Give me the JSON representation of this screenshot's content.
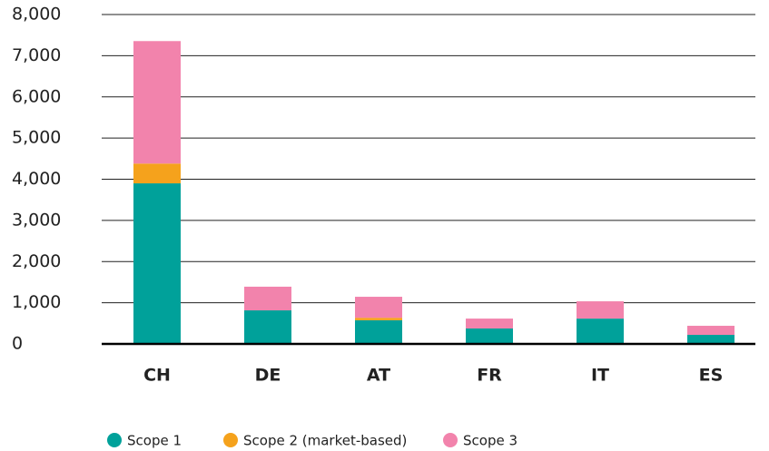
{
  "chart_data": {
    "type": "stacked_bar",
    "categories": [
      "CH",
      "DE",
      "AT",
      "FR",
      "IT",
      "ES"
    ],
    "series": [
      {
        "name": "Scope 1",
        "color": "#00a19a",
        "values": [
          3900,
          815,
          575,
          375,
          615,
          220
        ]
      },
      {
        "name": "Scope 2 (market-based)",
        "color": "#f5a21c",
        "values": [
          480,
          0,
          60,
          0,
          0,
          0
        ]
      },
      {
        "name": "Scope 3",
        "color": "#f283ac",
        "values": [
          2975,
          575,
          510,
          240,
          420,
          220
        ]
      }
    ],
    "ylim": [
      0,
      8000
    ],
    "yticks": [
      0,
      {
        "value": 1000,
        "label": "1,000"
      },
      {
        "value": 2000,
        "label": "2,000"
      },
      {
        "value": 3000,
        "label": "3,000"
      },
      {
        "value": 4000,
        "label": "4,000"
      },
      {
        "value": 5000,
        "label": "5,000"
      },
      {
        "value": 6000,
        "label": "6,000"
      },
      {
        "value": 7000,
        "label": "7,000"
      },
      {
        "value": 8000,
        "label": "8,000"
      }
    ],
    "grid": true
  }
}
